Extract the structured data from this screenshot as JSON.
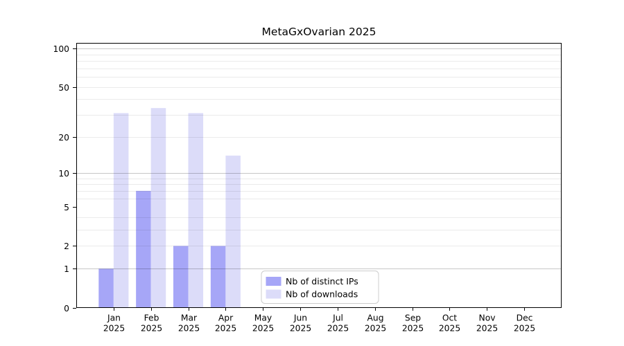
{
  "figure": {
    "background": "#ffffff"
  },
  "chart_data": {
    "type": "bar",
    "title": "MetaGxOvarian 2025",
    "categories": [
      "Jan",
      "Feb",
      "Mar",
      "Apr",
      "May",
      "Jun",
      "Jul",
      "Aug",
      "Sep",
      "Oct",
      "Nov",
      "Dec"
    ],
    "year_label": "2025",
    "series": [
      {
        "name": "Nb of distinct IPs",
        "color": "#a6a6f7",
        "values": [
          1,
          7,
          2,
          2,
          0,
          0,
          0,
          0,
          0,
          0,
          0,
          0
        ]
      },
      {
        "name": "Nb of downloads",
        "color": "#dcdcf9",
        "values": [
          31,
          34,
          31,
          14,
          0,
          0,
          0,
          0,
          0,
          0,
          0,
          0
        ]
      }
    ],
    "xlabel": "",
    "ylabel": "",
    "y_axis": {
      "scale": "log1p",
      "ylim": [
        0,
        110
      ],
      "ticks": [
        0,
        1,
        2,
        5,
        10,
        20,
        50,
        100
      ],
      "major_gridlines": [
        1,
        10,
        100
      ],
      "minor_gridlines": [
        2,
        3,
        4,
        6,
        7,
        8,
        9,
        20,
        30,
        40,
        50,
        60,
        70,
        80,
        90
      ]
    },
    "grid": true,
    "legend": {
      "position": "bottom-center",
      "entries": [
        "Nb of distinct IPs",
        "Nb of downloads"
      ]
    }
  },
  "colors": {
    "background": "#ffffff",
    "axis": "#000000",
    "major_grid": "rgba(0,0,0,0.22)",
    "minor_grid": "rgba(0,0,0,0.08)",
    "legend_border": "#cccccc",
    "legend_bg": "#ffffff",
    "text": "#000000"
  }
}
